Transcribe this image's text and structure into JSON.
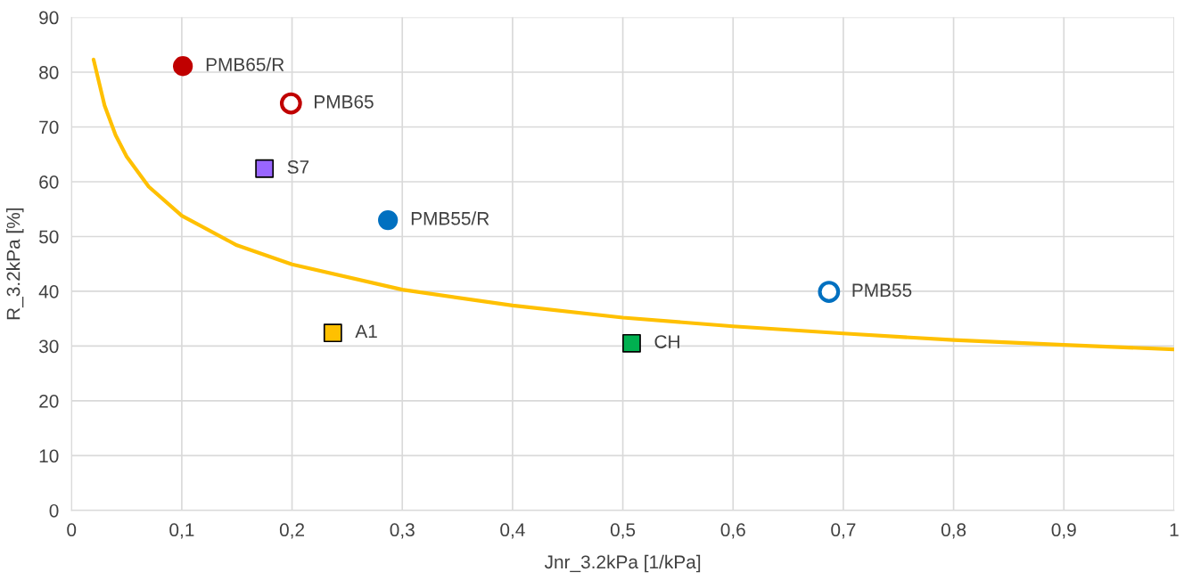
{
  "chart_data": {
    "type": "scatter",
    "xlabel": "Jnr_3.2kPa [1/kPa]",
    "ylabel": "R_3.2kPa [%]",
    "xlim": [
      0,
      1
    ],
    "xticks": [
      0,
      {
        "value": 0.1,
        "label": "0,1"
      },
      {
        "value": 0.2,
        "label": "0,2"
      },
      {
        "value": 0.3,
        "label": "0,3"
      },
      {
        "value": 0.4,
        "label": "0,4"
      },
      {
        "value": 0.5,
        "label": "0,5"
      },
      {
        "value": 0.6,
        "label": "0,6"
      },
      {
        "value": 0.7,
        "label": "0,7"
      },
      {
        "value": 0.8,
        "label": "0,8"
      },
      {
        "value": 0.9,
        "label": "0,9"
      },
      1
    ],
    "ylim": [
      0,
      90
    ],
    "yticks": [
      0,
      10,
      20,
      30,
      40,
      50,
      60,
      70,
      80,
      90
    ],
    "grid": true,
    "legend": false,
    "series": [
      {
        "type": "line",
        "color": "#ffc000",
        "marker": "none",
        "x": [
          0.02,
          0.03,
          0.04,
          0.05,
          0.07,
          0.1,
          0.15,
          0.2,
          0.3,
          0.4,
          0.5,
          0.6,
          0.7,
          0.8,
          0.9,
          1.0
        ],
        "values": [
          82.3,
          73.9,
          68.5,
          64.6,
          59.1,
          53.8,
          48.4,
          44.9,
          40.3,
          37.4,
          35.2,
          33.6,
          32.3,
          31.1,
          30.2,
          29.4
        ]
      },
      {
        "name": "PMB65/R",
        "color": "#c00000",
        "marker": "circle",
        "x": [
          0.101
        ],
        "values": [
          81.1
        ]
      },
      {
        "name": "PMB65",
        "color": "#c00000",
        "colors": [
          "#ffffff"
        ],
        "marker": "circle",
        "x": [
          0.199
        ],
        "values": [
          74.3
        ]
      },
      {
        "name": "S7",
        "color": "#9966ff",
        "marker": "square",
        "x": [
          0.175
        ],
        "values": [
          62.4
        ]
      },
      {
        "name": "PMB55/R",
        "color": "#0070c0",
        "marker": "circle",
        "x": [
          0.287
        ],
        "values": [
          53.0
        ]
      },
      {
        "name": "PMB55",
        "color": "#0070c0",
        "colors": [
          "#ffffff"
        ],
        "marker": "circle",
        "x": [
          0.687
        ],
        "values": [
          39.9
        ]
      },
      {
        "name": "A1",
        "color": "#ffc000",
        "marker": "square",
        "x": [
          0.237
        ],
        "values": [
          32.4
        ]
      },
      {
        "name": "CH",
        "color": "#00b050",
        "marker": "square",
        "x": [
          0.508
        ],
        "values": [
          30.5
        ]
      }
    ]
  }
}
